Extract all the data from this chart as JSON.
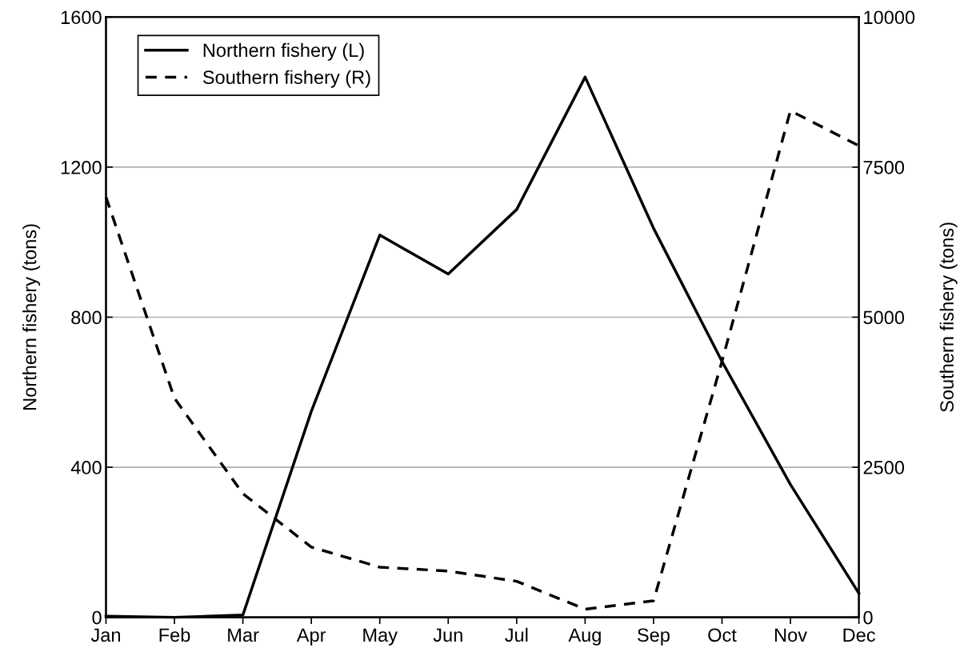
{
  "chart_data": {
    "type": "line",
    "categories": [
      "Jan",
      "Feb",
      "Mar",
      "Apr",
      "May",
      "Jun",
      "Jul",
      "Aug",
      "Sep",
      "Oct",
      "Nov",
      "Dec"
    ],
    "series": [
      {
        "name": "Northern fishery (L)",
        "color": "#000000",
        "line_style": "solid",
        "values": [
          3,
          0,
          6,
          549,
          1019,
          915,
          1087,
          1440,
          1037,
          682,
          354,
          64
        ]
      },
      {
        "name": "Southern fishery (R)",
        "color": "#000000",
        "line_style": "dashed",
        "axis": "y2",
        "values": [
          7000,
          3650,
          2060,
          1170,
          835,
          770,
          600,
          135,
          275,
          4265,
          8440,
          7855
        ]
      }
    ],
    "ylabel": "Northern fishery (tons)",
    "y2label": "Southern fishery (tons)",
    "ylim": [
      0,
      1600
    ],
    "yticks": [
      0,
      400,
      800,
      1200,
      1600
    ],
    "y2lim": [
      0,
      10000
    ],
    "y2ticks": [
      0,
      2500,
      5000,
      7500,
      10000
    ],
    "grid": "y",
    "legend": "top left",
    "marker": "none"
  }
}
